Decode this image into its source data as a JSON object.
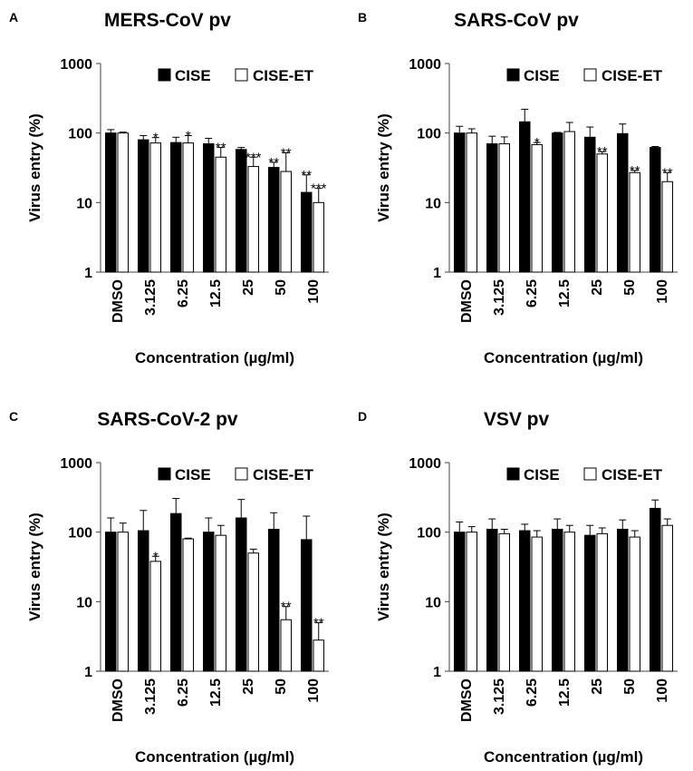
{
  "figure": {
    "xlabel": "Concentration (µg/ml)",
    "ylabel": "Virus entry (%)"
  },
  "legend": {
    "cise": "CISE",
    "cise_et": "CISE-ET"
  },
  "colors": {
    "cise": "#000000",
    "cise_et": "#ffffff",
    "stroke": "#000000",
    "axis": "#404040"
  },
  "chart_data": [
    {
      "letter": "A",
      "title": "MERS-CoV pv",
      "type": "bar",
      "yscale": "log",
      "ylim": [
        1,
        1000
      ],
      "yticks": [
        "1",
        "10",
        "100",
        "1000"
      ],
      "categories": [
        "DMSO",
        "3.125",
        "6.25",
        "12.5",
        "25",
        "50",
        "100"
      ],
      "series": [
        {
          "name": "CISE",
          "values": [
            100,
            80,
            73,
            70,
            58,
            32,
            14
          ],
          "err": [
            112,
            92,
            87,
            84,
            62,
            38,
            25
          ],
          "sig": [
            "",
            "",
            "",
            "",
            "",
            "**",
            "**"
          ]
        },
        {
          "name": "CISE-ET",
          "values": [
            100,
            72,
            72,
            45,
            33,
            28,
            10
          ],
          "err": [
            103,
            86,
            92,
            62,
            45,
            52,
            16
          ],
          "sig": [
            "",
            "*",
            "*",
            "**",
            "***",
            "**",
            "***"
          ]
        }
      ]
    },
    {
      "letter": "B",
      "title": "SARS-CoV pv",
      "type": "bar",
      "yscale": "log",
      "ylim": [
        1,
        1000
      ],
      "yticks": [
        "1",
        "10",
        "100",
        "1000"
      ],
      "categories": [
        "DMSO",
        "3.125",
        "6.25",
        "12.5",
        "25",
        "50",
        "100"
      ],
      "series": [
        {
          "name": "CISE",
          "values": [
            100,
            70,
            145,
            100,
            87,
            98,
            62
          ],
          "err": [
            125,
            90,
            220,
            102,
            122,
            135,
            64
          ],
          "sig": [
            "",
            "",
            "",
            "",
            "",
            "",
            ""
          ]
        },
        {
          "name": "CISE-ET",
          "values": [
            100,
            70,
            68,
            105,
            50,
            27,
            20
          ],
          "err": [
            115,
            88,
            73,
            142,
            54,
            29,
            27
          ],
          "sig": [
            "",
            "",
            "*",
            "",
            "**",
            "**",
            "**"
          ]
        }
      ]
    },
    {
      "letter": "C",
      "title": "SARS-CoV-2 pv",
      "type": "bar",
      "yscale": "log",
      "ylim": [
        1,
        1000
      ],
      "yticks": [
        "1",
        "10",
        "100",
        "1000"
      ],
      "categories": [
        "DMSO",
        "3.125",
        "6.25",
        "12.5",
        "25",
        "50",
        "100"
      ],
      "series": [
        {
          "name": "CISE",
          "values": [
            100,
            105,
            185,
            100,
            160,
            110,
            78
          ],
          "err": [
            160,
            205,
            305,
            160,
            295,
            190,
            170
          ],
          "sig": [
            "",
            "",
            "",
            "",
            "",
            "",
            ""
          ]
        },
        {
          "name": "CISE-ET",
          "values": [
            100,
            38,
            80,
            90,
            50,
            5.5,
            2.8
          ],
          "err": [
            135,
            45,
            82,
            125,
            57,
            8.5,
            5
          ],
          "sig": [
            "",
            "*",
            "",
            "",
            "",
            "**",
            "**"
          ]
        }
      ]
    },
    {
      "letter": "D",
      "title": "VSV pv",
      "type": "bar",
      "yscale": "log",
      "ylim": [
        1,
        1000
      ],
      "yticks": [
        "1",
        "10",
        "100",
        "1000"
      ],
      "categories": [
        "DMSO",
        "3.125",
        "6.25",
        "12.5",
        "25",
        "50",
        "100"
      ],
      "series": [
        {
          "name": "CISE",
          "values": [
            100,
            110,
            105,
            110,
            90,
            110,
            220
          ],
          "err": [
            140,
            155,
            130,
            155,
            125,
            150,
            290
          ],
          "sig": [
            "",
            "",
            "",
            "",
            "",
            "",
            ""
          ]
        },
        {
          "name": "CISE-ET",
          "values": [
            100,
            95,
            85,
            100,
            95,
            85,
            125
          ],
          "err": [
            120,
            110,
            105,
            125,
            115,
            105,
            155
          ],
          "sig": [
            "",
            "",
            "",
            "",
            "",
            "",
            ""
          ]
        }
      ]
    }
  ]
}
